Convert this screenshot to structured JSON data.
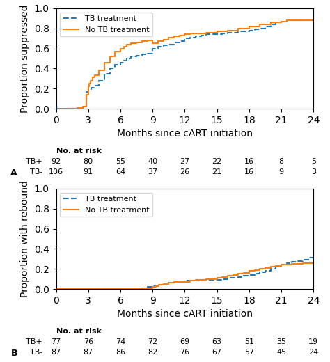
{
  "chart_data": [
    {
      "type": "step",
      "xlabel": "Months since cART initiation",
      "ylabel": "Proportion suppressed",
      "xlim": [
        0,
        24
      ],
      "ylim": [
        0,
        1
      ],
      "xticks": [
        0,
        3,
        6,
        9,
        12,
        15,
        18,
        21,
        24
      ],
      "yticks": [
        {
          "value": 0,
          "label": "0.0"
        },
        {
          "value": 0.2,
          "label": "0.2"
        },
        {
          "value": 0.4,
          "label": "0.4"
        },
        {
          "value": 0.6,
          "label": "0.6"
        },
        {
          "value": 0.8,
          "label": "0.8"
        },
        {
          "value": 1,
          "label": "1.0"
        }
      ],
      "legend": "upper left",
      "series": [
        {
          "name": "TB treatment",
          "line_style": "dashed",
          "x": [
            0,
            1.5,
            2.0,
            2.5,
            2.8,
            3.0,
            3.3,
            3.6,
            4.0,
            4.5,
            5.0,
            5.5,
            6.0,
            6.3,
            6.6,
            7.0,
            7.5,
            8.0,
            8.5,
            9.0,
            9.5,
            10.0,
            10.5,
            11.0,
            11.5,
            12.0,
            12.5,
            13.0,
            13.5,
            14.0,
            15.0,
            15.5,
            16.0,
            17.0,
            18.0,
            18.5,
            19.0,
            19.5,
            20.0,
            20.5,
            21.0,
            21.5,
            22.0,
            22.5,
            23.0,
            24.0
          ],
          "values": [
            0.0,
            0.0,
            0.01,
            0.02,
            0.17,
            0.19,
            0.21,
            0.23,
            0.28,
            0.35,
            0.4,
            0.44,
            0.46,
            0.48,
            0.5,
            0.52,
            0.53,
            0.54,
            0.55,
            0.6,
            0.62,
            0.63,
            0.64,
            0.66,
            0.67,
            0.7,
            0.71,
            0.72,
            0.73,
            0.74,
            0.74,
            0.75,
            0.76,
            0.77,
            0.78,
            0.79,
            0.8,
            0.82,
            0.84,
            0.86,
            0.87,
            0.88,
            0.88,
            0.88,
            0.88,
            0.88
          ]
        },
        {
          "name": "No TB treatment",
          "line_style": "solid",
          "x": [
            0,
            1.5,
            2.0,
            2.5,
            2.8,
            3.0,
            3.1,
            3.2,
            3.4,
            3.6,
            4.0,
            4.5,
            5.0,
            5.5,
            6.0,
            6.3,
            6.6,
            7.0,
            7.5,
            8.0,
            8.5,
            9.0,
            9.5,
            10.0,
            10.5,
            11.0,
            11.5,
            12.0,
            12.5,
            13.0,
            14.0,
            15.0,
            16.0,
            17.0,
            18.0,
            19.0,
            20.0,
            21.0,
            21.5,
            22.0,
            23.0,
            24.0
          ],
          "values": [
            0.0,
            0.0,
            0.01,
            0.02,
            0.14,
            0.22,
            0.25,
            0.28,
            0.31,
            0.33,
            0.38,
            0.46,
            0.52,
            0.57,
            0.6,
            0.62,
            0.64,
            0.65,
            0.66,
            0.67,
            0.68,
            0.65,
            0.67,
            0.69,
            0.71,
            0.72,
            0.73,
            0.74,
            0.75,
            0.75,
            0.76,
            0.77,
            0.78,
            0.8,
            0.82,
            0.84,
            0.86,
            0.87,
            0.88,
            0.88,
            0.88,
            0.88
          ]
        }
      ],
      "risk_table": {
        "label": "No. at risk",
        "rows": [
          {
            "name": "TB+",
            "values": [
              92,
              80,
              55,
              40,
              27,
              22,
              16,
              8,
              5
            ]
          },
          {
            "name": "TB-",
            "values": [
              106,
              91,
              64,
              37,
              26,
              21,
              16,
              9,
              3
            ]
          }
        ]
      },
      "panel_label": "A"
    },
    {
      "type": "step",
      "xlabel": "Months since cART initiation",
      "ylabel": "Proportion with rebound",
      "xlim": [
        0,
        24
      ],
      "ylim": [
        0,
        1
      ],
      "xticks": [
        0,
        3,
        6,
        9,
        12,
        15,
        18,
        21,
        24
      ],
      "yticks": [
        {
          "value": 0,
          "label": "0.0"
        },
        {
          "value": 0.2,
          "label": "0.2"
        },
        {
          "value": 0.4,
          "label": "0.4"
        },
        {
          "value": 0.6,
          "label": "0.6"
        },
        {
          "value": 0.8,
          "label": "0.8"
        },
        {
          "value": 1,
          "label": "1.0"
        }
      ],
      "legend": "upper left",
      "series": [
        {
          "name": "TB treatment",
          "line_style": "dashed",
          "x": [
            0,
            7.0,
            8.0,
            8.5,
            9.0,
            9.5,
            10.0,
            10.5,
            11.0,
            11.5,
            12.0,
            12.5,
            13.0,
            13.5,
            14.0,
            14.5,
            15.0,
            15.5,
            16.0,
            16.5,
            17.0,
            17.5,
            18.0,
            18.5,
            19.0,
            19.5,
            20.0,
            20.5,
            21.0,
            21.5,
            22.0,
            22.5,
            23.0,
            23.5,
            24.0
          ],
          "values": [
            0.0,
            0.0,
            0.01,
            0.02,
            0.03,
            0.04,
            0.05,
            0.06,
            0.07,
            0.07,
            0.08,
            0.08,
            0.08,
            0.09,
            0.09,
            0.09,
            0.09,
            0.1,
            0.11,
            0.11,
            0.12,
            0.13,
            0.14,
            0.15,
            0.17,
            0.18,
            0.2,
            0.22,
            0.24,
            0.26,
            0.27,
            0.28,
            0.29,
            0.31,
            0.32
          ]
        },
        {
          "name": "No TB treatment",
          "line_style": "solid",
          "x": [
            0,
            7.5,
            8.0,
            8.5,
            9.0,
            9.3,
            9.6,
            10.0,
            10.5,
            11.0,
            11.5,
            12.0,
            12.5,
            13.0,
            13.5,
            14.0,
            14.5,
            15.0,
            15.5,
            16.0,
            16.5,
            17.0,
            17.5,
            18.0,
            18.5,
            19.0,
            19.5,
            20.0,
            20.5,
            21.0,
            22.0,
            23.0,
            24.0
          ],
          "values": [
            0.0,
            0.0,
            0.01,
            0.01,
            0.02,
            0.03,
            0.04,
            0.05,
            0.06,
            0.07,
            0.07,
            0.07,
            0.08,
            0.09,
            0.09,
            0.1,
            0.1,
            0.11,
            0.12,
            0.13,
            0.14,
            0.15,
            0.16,
            0.18,
            0.19,
            0.2,
            0.21,
            0.22,
            0.23,
            0.24,
            0.25,
            0.26,
            0.26
          ]
        }
      ],
      "risk_table": {
        "label": "No. at risk",
        "rows": [
          {
            "name": "TB+",
            "values": [
              77,
              76,
              74,
              72,
              69,
              63,
              51,
              35,
              19
            ]
          },
          {
            "name": "TB-",
            "values": [
              87,
              87,
              86,
              82,
              76,
              67,
              57,
              45,
              24
            ]
          }
        ]
      },
      "panel_label": "B"
    }
  ]
}
